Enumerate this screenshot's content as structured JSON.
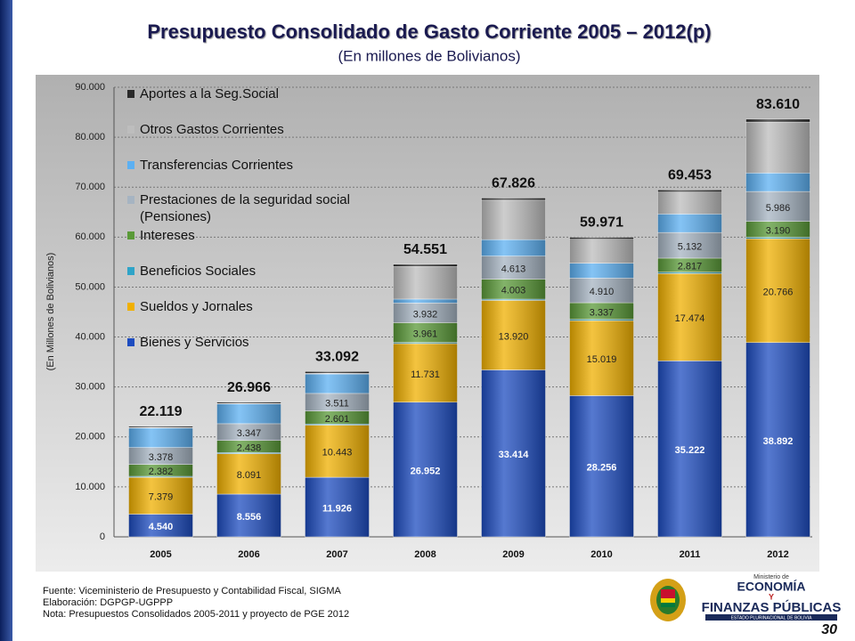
{
  "chart_data": {
    "type": "stacked_bar",
    "title": "Presupuesto Consolidado de Gasto Corriente 2005 – 2012(p)",
    "subtitle": "(En millones de Bolivianos)",
    "y_label": "(En Millones de Bolivianos)",
    "categories": [
      "2005",
      "2006",
      "2007",
      "2008",
      "2009",
      "2010",
      "2011",
      "2012"
    ],
    "series": [
      {
        "name": "Bienes y Servicios",
        "color": "#1d4cc0",
        "values": [
          4540,
          8556,
          11926,
          26952,
          33414,
          28256,
          35222,
          38892
        ],
        "value_labels": [
          "4.540",
          "8.556",
          "11.926",
          "26.952",
          "33.414",
          "28.256",
          "35.222",
          "38.892"
        ]
      },
      {
        "name": "Sueldos y Jornales",
        "color": "#f0b000",
        "values": [
          7379,
          8091,
          10443,
          11731,
          13920,
          15019,
          17474,
          20766
        ],
        "value_labels": [
          "7.379",
          "8.091",
          "10.443",
          "11.731",
          "13.920",
          "15.019",
          "17.474",
          "20.766"
        ]
      },
      {
        "name": "Beneficios Sociales",
        "color": "#2fa4c8",
        "values": [
          200,
          220,
          230,
          220,
          250,
          260,
          280,
          300
        ]
      },
      {
        "name": "Intereses",
        "color": "#5a9a38",
        "values": [
          2382,
          2438,
          2601,
          3961,
          4003,
          3337,
          2817,
          3190
        ],
        "value_labels": [
          "2.382",
          "2.438",
          "2.601",
          "3.961",
          "4.003",
          "3.337",
          "2.817",
          "3.190"
        ]
      },
      {
        "name": "Prestaciones de la seguridad social (Pensiones)",
        "color": "#a6b4c2",
        "values": [
          3378,
          3347,
          3511,
          3932,
          4613,
          4910,
          5132,
          5986
        ],
        "value_labels": [
          "3.378",
          "3.347",
          "3.511",
          "3.932",
          "4.613",
          "4.910",
          "5.132",
          "5.986"
        ]
      },
      {
        "name": "Transferencias Corrientes",
        "color": "#5cb0f2",
        "values": [
          3900,
          3950,
          3900,
          800,
          3300,
          3000,
          3700,
          3700
        ]
      },
      {
        "name": "Otros Gastos Corrientes",
        "color": "#bdbdbd",
        "values": [
          100,
          100,
          130,
          6500,
          7900,
          4800,
          4400,
          10200
        ]
      },
      {
        "name": "Aportes a la Seg.Social",
        "color": "#2a2a2a",
        "values": [
          240,
          264,
          351,
          455,
          426,
          389,
          428,
          576
        ]
      }
    ],
    "totals": {
      "values": [
        22119,
        26966,
        33092,
        54551,
        67826,
        59971,
        69453,
        83610
      ],
      "value_labels": [
        "22.119",
        "26.966",
        "33.092",
        "54.551",
        "67.826",
        "59.971",
        "69.453",
        "83.610"
      ]
    },
    "ylim": [
      0,
      90000
    ],
    "yticks": [
      0,
      {
        "value": 10000,
        "label": "10.000"
      },
      {
        "value": 20000,
        "label": "20.000"
      },
      {
        "value": 30000,
        "label": "30.000"
      },
      {
        "value": 40000,
        "label": "40.000"
      },
      {
        "value": 50000,
        "label": "50.000"
      },
      {
        "value": 60000,
        "label": "60.000"
      },
      {
        "value": 70000,
        "label": "70.000"
      },
      {
        "value": 80000,
        "label": "80.000"
      },
      {
        "value": 90000,
        "label": "90.000"
      }
    ],
    "grid": true,
    "legend": "top-left"
  },
  "footer": {
    "notes": [
      "Fuente: Viceministerio de Presupuesto y Contabilidad Fiscal, SIGMA",
      "Elaboración: DGPGP-UGPPP",
      "Nota: Presupuestos Consolidados 2005-2011 y proyecto de PGE 2012"
    ],
    "page": "30",
    "logo": {
      "line1": "Ministerio de",
      "line2": "ECONOMÍA",
      "line3": "Y",
      "line4": "FINANZAS PÚBLICAS",
      "line5": "ESTADO PLURINACIONAL DE BOLIVIA"
    }
  }
}
